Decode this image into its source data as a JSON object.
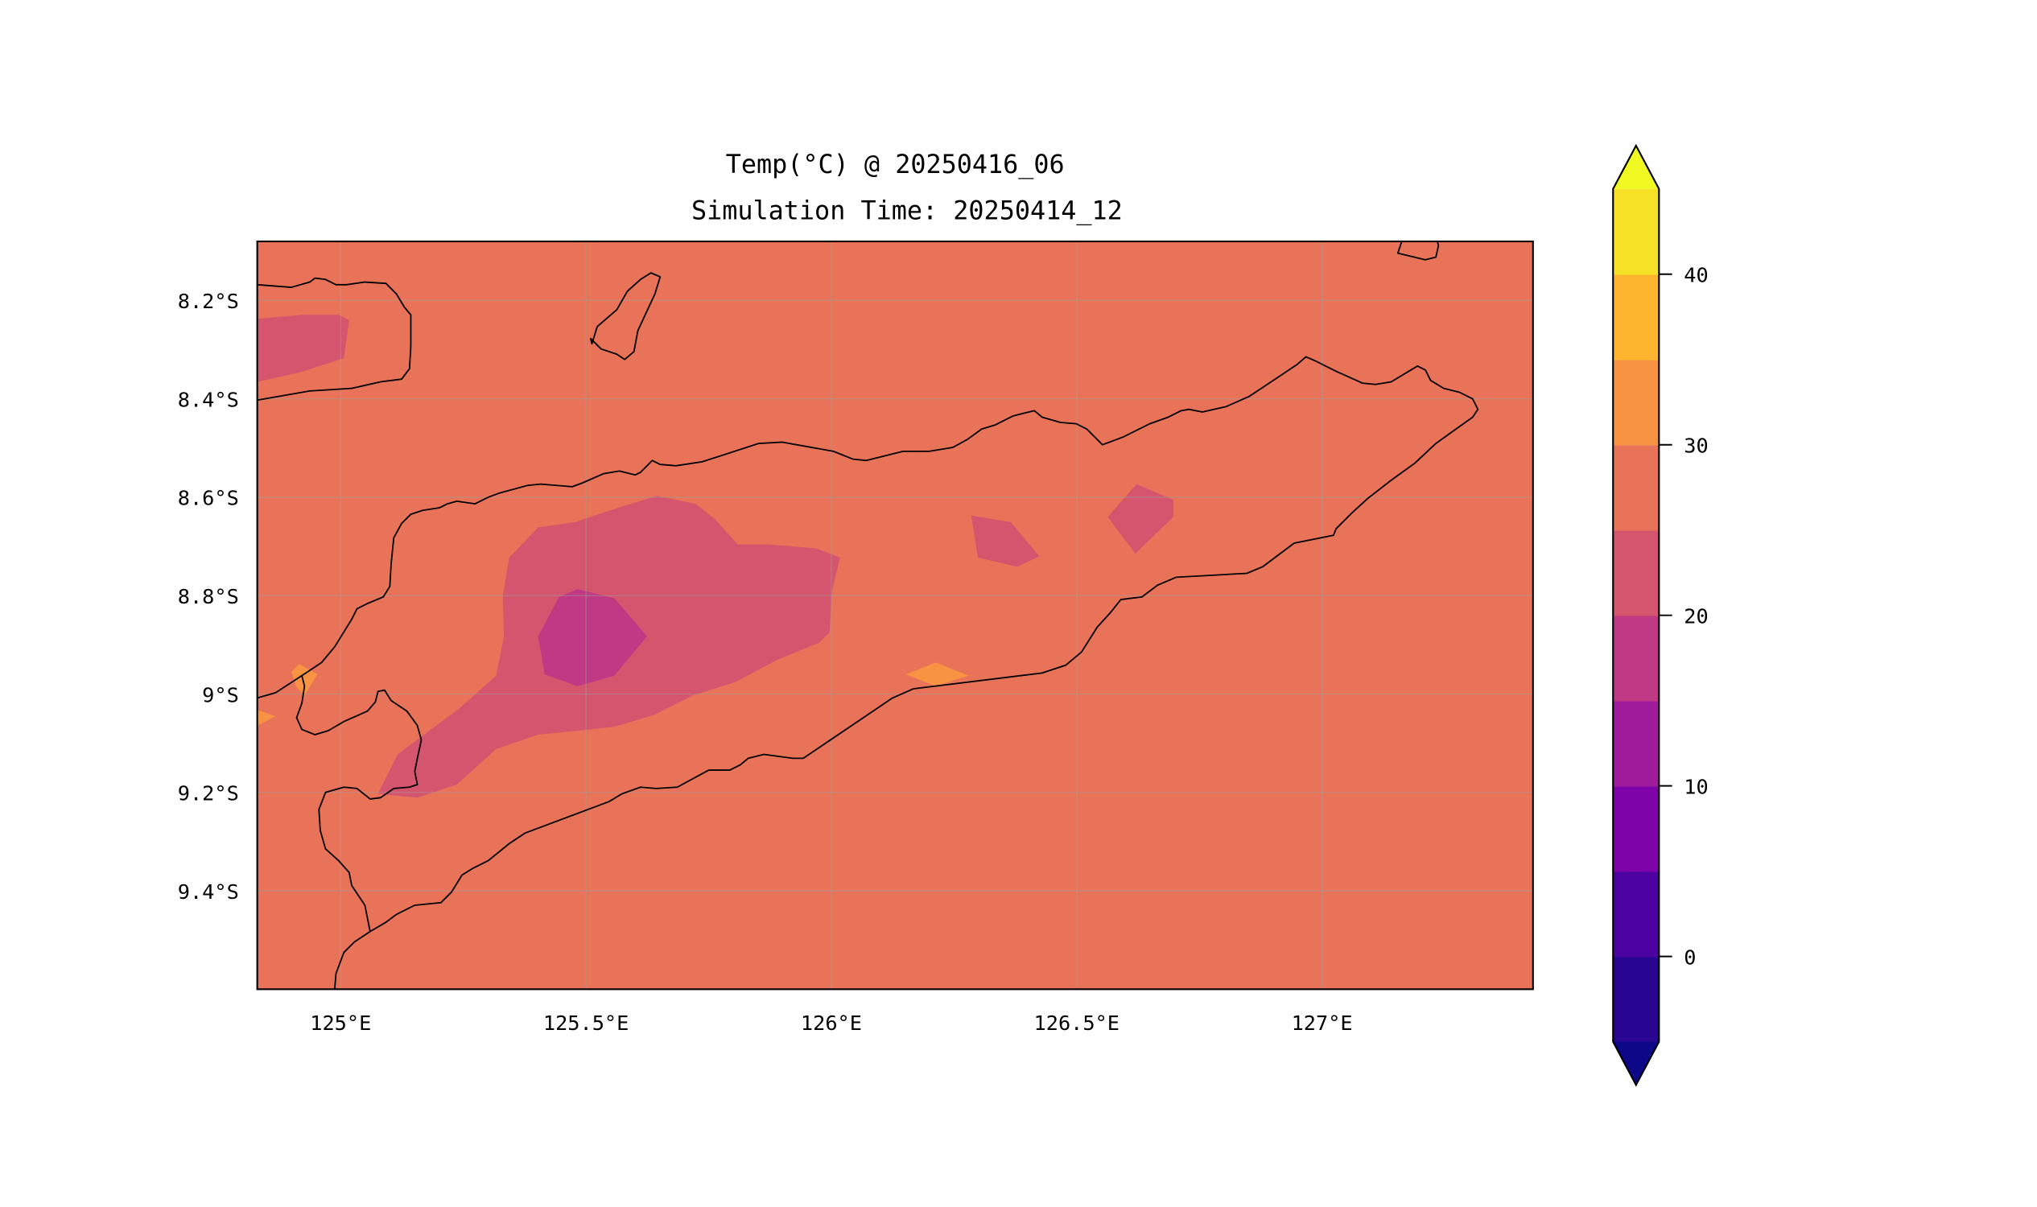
{
  "chart_data": {
    "type": "heatmap",
    "subtype": "filled-contour map",
    "title": "Temp(°C) @ 20250416_06",
    "subtitle": "Simulation Time: 20250414_12",
    "xlabel": "",
    "ylabel": "",
    "xlim": [
      124.83,
      127.43
    ],
    "ylim": [
      -9.6,
      -8.08
    ],
    "x_ticks": [
      125,
      125.5,
      126,
      126.5,
      127
    ],
    "x_tick_labels": [
      "125°E",
      "125.5°E",
      "126°E",
      "126.5°E",
      "127°E"
    ],
    "y_ticks": [
      -8.2,
      -8.4,
      -8.6,
      -8.8,
      -9.0,
      -9.2,
      -9.4
    ],
    "y_tick_labels": [
      "8.2°S",
      "8.4°S",
      "8.6°S",
      "8.8°S",
      "9°S",
      "9.2°S",
      "9.4°S"
    ],
    "grid": true,
    "colorbar": {
      "levels": [
        -5,
        0,
        5,
        10,
        15,
        20,
        25,
        30,
        35,
        40,
        45
      ],
      "colors": [
        "#290691",
        "#4c02a1",
        "#7e03a8",
        "#a01a9c",
        "#bf3984",
        "#d5546e",
        "#e97358",
        "#f79342",
        "#fdb42f",
        "#f6e126"
      ],
      "extend_under_color": "#0d0887",
      "extend_over_color": "#f0f921",
      "ticks": [
        0,
        10,
        20,
        30,
        40
      ],
      "tick_labels": [
        "0",
        "10",
        "20",
        "30",
        "40"
      ],
      "placement": "right"
    },
    "field_summary": {
      "background_band": [
        25,
        30
      ],
      "cool_band_interior": [
        20,
        25
      ],
      "coolest_band_core": [
        15,
        20
      ],
      "warm_spots_band": [
        30,
        35
      ]
    }
  }
}
